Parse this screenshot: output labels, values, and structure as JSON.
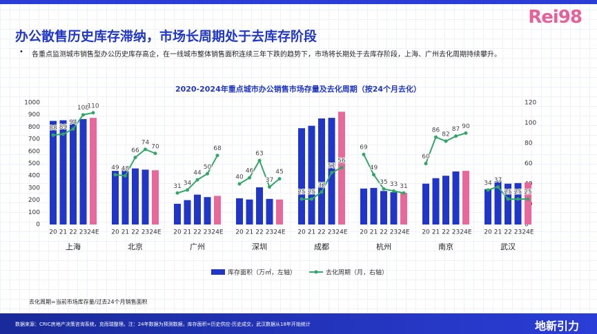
{
  "header": {
    "title": "办公散售历史库存滞纳，市场长周期处于去库存阶段",
    "logo": "Rei98",
    "bullet": "各重点监测城市销售型办公历史库存高企，在一线城市整体销售面积连续三年下跌的趋势下，市场将长期处于去库存阶段，上海、广州去化周期持续攀升。"
  },
  "chart_data": {
    "type": "bar-line",
    "title": "2020-2024年重点城市办公销售市场存量及去化周期（按24个月去化）",
    "groups": [
      "上海",
      "北京",
      "广州",
      "深圳",
      "成都",
      "杭州",
      "南京",
      "武汉"
    ],
    "categories": [
      "20",
      "21",
      "22",
      "23",
      "24E",
      "20",
      "21",
      "22",
      "23",
      "24E",
      "20",
      "21",
      "22",
      "23",
      "24E",
      "20",
      "21",
      "22",
      "23",
      "24E",
      "20",
      "21",
      "22",
      "23",
      "24E",
      "20",
      "21",
      "22",
      "23",
      "24E",
      "20",
      "21",
      "22",
      "23",
      "24E",
      "20",
      "21",
      "22",
      "23",
      "24E"
    ],
    "series": [
      {
        "name": "库存面积（万㎡，左轴）",
        "type": "bar",
        "color": "#1f36c8",
        "colors": [
          "#1f36c8",
          "#1f36c8",
          "#1f36c8",
          "#1f36c8",
          "#e8689c",
          "#1f36c8",
          "#1f36c8",
          "#1f36c8",
          "#1f36c8",
          "#e8689c",
          "#1f36c8",
          "#1f36c8",
          "#1f36c8",
          "#1f36c8",
          "#e8689c",
          "#1f36c8",
          "#1f36c8",
          "#1f36c8",
          "#1f36c8",
          "#e8689c",
          "#1f36c8",
          "#1f36c8",
          "#1f36c8",
          "#1f36c8",
          "#e8689c",
          "#1f36c8",
          "#1f36c8",
          "#1f36c8",
          "#1f36c8",
          "#e8689c",
          "#1f36c8",
          "#1f36c8",
          "#1f36c8",
          "#1f36c8",
          "#e8689c",
          "#1f36c8",
          "#1f36c8",
          "#1f36c8",
          "#1f36c8",
          "#e8689c"
        ],
        "values": [
          850,
          855,
          860,
          865,
          875,
          440,
          450,
          460,
          450,
          445,
          170,
          200,
          245,
          225,
          235,
          215,
          205,
          305,
          210,
          205,
          790,
          810,
          870,
          875,
          925,
          295,
          300,
          275,
          265,
          260,
          335,
          380,
          400,
          435,
          440,
          290,
          360,
          335,
          340,
          345
        ]
      },
      {
        "name": "去化周期（月，右轴）",
        "type": "line",
        "axis": "y2",
        "color": "#2fa866",
        "values": [
          88,
          89,
          94,
          108,
          110,
          49,
          48,
          66,
          74,
          70,
          31,
          34,
          44,
          50,
          68,
          40,
          46,
          63,
          37,
          45,
          25,
          25,
          32,
          51,
          56,
          69,
          49,
          35,
          33,
          31,
          60,
          86,
          82,
          87,
          90,
          34,
          37,
          25,
          25,
          25
        ]
      }
    ],
    "ylim": [
      0,
      1000
    ],
    "yticks": [
      0,
      100,
      200,
      300,
      400,
      500,
      600,
      700,
      800,
      900,
      1000
    ],
    "y2lim": [
      0,
      120
    ],
    "y2ticks": [
      0,
      20,
      40,
      60,
      80,
      100,
      120
    ]
  },
  "footer": {
    "note": "去化周期=当前市场库存量/过去24个月销售面积",
    "source": "数据来源：CRIC房地产决策咨询系统，克而瑞整理。注：24年数据为预测数据，库存面积=历史供应-历史成交，武汉数据从18年开始统计",
    "brand": "地新引力"
  }
}
